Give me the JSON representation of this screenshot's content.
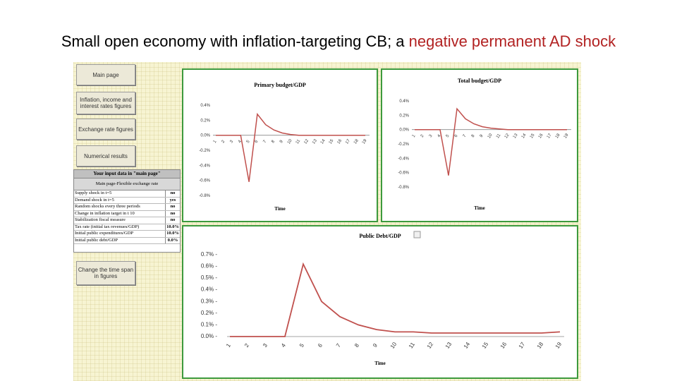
{
  "slide": {
    "title_prefix": "Small open economy with inflation-targeting CB; a ",
    "title_highlight": "negative permanent AD shock"
  },
  "colors": {
    "series": "#c0504d",
    "frame": "#3d9a3d",
    "highlight": "#b22222"
  },
  "sidebar": {
    "buttons": [
      {
        "label": "Main page"
      },
      {
        "label": "Inflation, income and interest rates figures"
      },
      {
        "label": "Exchange rate figures"
      },
      {
        "label": "Numerical results"
      },
      {
        "label": "Change the time span in figures"
      }
    ]
  },
  "input_panel": {
    "heading": "Your input data in \"main page\"",
    "subheading": "Main page-Flexible exchange rate",
    "rows": [
      {
        "label": "Supply shock in t=5",
        "value": "no"
      },
      {
        "label": "Demand shock in t=5",
        "value": "yes"
      },
      {
        "label": "Random shocks every three periods",
        "value": "no"
      },
      {
        "label": "Change in inflation target in t 10",
        "value": "no"
      },
      {
        "label": "Stabilization fiscal measure",
        "value": "no"
      },
      {
        "label": "Tax rate (initial tax revenues/GDP)",
        "value": "10.0%"
      },
      {
        "label": "Initial public expenditures/GDP",
        "value": "10.0%"
      },
      {
        "label": "Initial public debt/GDP",
        "value": "0.0%"
      }
    ]
  },
  "chart_data": [
    {
      "type": "line",
      "title": "Primary budget/GDP",
      "xlabel": "Time",
      "ylabel": "",
      "x": [
        1,
        2,
        3,
        4,
        5,
        6,
        7,
        8,
        9,
        10,
        11,
        12,
        13,
        14,
        15,
        16,
        17,
        18,
        19
      ],
      "x_labels": [
        "1",
        "2",
        "3",
        "4",
        "5",
        "6",
        "7",
        "8",
        "9",
        "10",
        "11",
        "12",
        "13",
        "14",
        "15",
        "16",
        "17",
        "18",
        "19"
      ],
      "series": [
        {
          "values": [
            0,
            0,
            0,
            0,
            -0.0062,
            0.0028,
            0.0014,
            0.0007,
            0.0003,
            0.0001,
            0,
            0,
            0,
            0,
            0,
            0,
            0,
            0,
            0
          ]
        }
      ],
      "ylim": [
        -0.008,
        0.004
      ],
      "y_ticks": [
        "0.4%",
        "0.2%",
        "0.0%",
        "-0.2%",
        "-0.4%",
        "-0.6%",
        "-0.8%"
      ],
      "grid": false
    },
    {
      "type": "line",
      "title": "Total budget/GDP",
      "xlabel": "Time",
      "ylabel": "",
      "x": [
        1,
        2,
        3,
        4,
        5,
        6,
        7,
        8,
        9,
        10,
        11,
        12,
        13,
        14,
        15,
        16,
        17,
        18,
        19
      ],
      "x_labels": [
        "1",
        "2",
        "3",
        "4",
        "5",
        "6",
        "7",
        "8",
        "9",
        "10",
        "11",
        "12",
        "13",
        "14",
        "15",
        "16",
        "17",
        "18",
        "19"
      ],
      "series": [
        {
          "values": [
            0,
            0,
            0,
            0,
            -0.0064,
            0.0029,
            0.0015,
            0.0008,
            0.0004,
            0.0002,
            0.0001,
            0,
            0,
            0,
            0,
            0,
            0,
            0,
            0
          ]
        }
      ],
      "ylim": [
        -0.008,
        0.004
      ],
      "y_ticks": [
        "0.4%",
        "0.2%",
        "0.0%",
        "-0.2%",
        "-0.4%",
        "-0.6%",
        "-0.8%"
      ],
      "grid": false
    },
    {
      "type": "line",
      "title": "Public Debt/GDP",
      "xlabel": "Time",
      "ylabel": "",
      "x": [
        1,
        2,
        3,
        4,
        5,
        6,
        7,
        8,
        9,
        10,
        11,
        12,
        13,
        14,
        15,
        16,
        17,
        18,
        19
      ],
      "x_labels": [
        "1",
        "2",
        "3",
        "4",
        "5",
        "6",
        "7",
        "8",
        "9",
        "10",
        "11",
        "12",
        "13",
        "14",
        "15",
        "16",
        "17",
        "18",
        "19"
      ],
      "series": [
        {
          "values": [
            0,
            0,
            0,
            0,
            0.0062,
            0.003,
            0.0017,
            0.001,
            0.0006,
            0.0004,
            0.0004,
            0.0003,
            0.0003,
            0.0003,
            0.0003,
            0.0003,
            0.0003,
            0.0003,
            0.0004
          ]
        }
      ],
      "ylim": [
        0,
        0.007
      ],
      "y_ticks": [
        "0.7%",
        "0.6%",
        "0.5%",
        "0.4%",
        "0.3%",
        "0.2%",
        "0.1%",
        "0.0%"
      ],
      "grid": false
    }
  ]
}
